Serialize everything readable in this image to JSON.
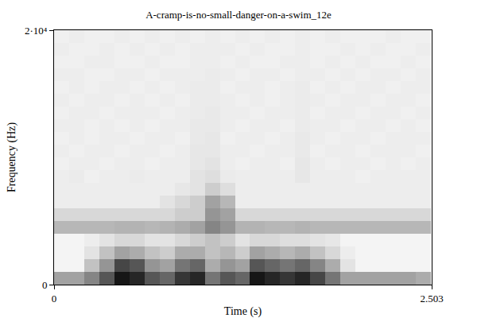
{
  "chart_data": {
    "type": "heatmap",
    "title": "A-cramp-is-no-small-danger-on-a-swim_12e",
    "x_label": "Time (s)",
    "y_label": "Frequency (Hz)",
    "x": [
      0.05,
      0.15,
      0.25,
      0.35,
      0.45,
      0.55,
      0.65,
      0.75,
      0.85,
      0.95,
      1.05,
      1.15,
      1.25,
      1.35,
      1.45,
      1.55,
      1.65,
      1.75,
      1.85,
      1.95,
      2.05,
      2.15,
      2.25,
      2.35,
      2.45
    ],
    "y": [
      500,
      1500,
      2500,
      3500,
      4500,
      5500,
      6500,
      7500,
      8500,
      9500,
      10500,
      11500,
      12500,
      13500,
      14500,
      15500,
      16500,
      17500,
      18500,
      19500
    ],
    "z": [
      [
        0.5,
        0.5,
        0.6,
        0.75,
        0.95,
        0.9,
        0.75,
        0.7,
        0.85,
        0.9,
        0.65,
        0.75,
        0.7,
        0.95,
        0.9,
        0.85,
        0.9,
        0.8,
        0.65,
        0.5,
        0.5,
        0.5,
        0.5,
        0.5,
        0.45
      ],
      [
        0.12,
        0.12,
        0.35,
        0.55,
        0.8,
        0.75,
        0.55,
        0.5,
        0.65,
        0.7,
        0.45,
        0.55,
        0.5,
        0.75,
        0.7,
        0.65,
        0.7,
        0.6,
        0.45,
        0.2,
        0.12,
        0.12,
        0.12,
        0.12,
        0.12
      ],
      [
        0.12,
        0.12,
        0.2,
        0.35,
        0.5,
        0.45,
        0.35,
        0.3,
        0.45,
        0.45,
        0.35,
        0.4,
        0.3,
        0.5,
        0.45,
        0.4,
        0.45,
        0.35,
        0.25,
        0.15,
        0.12,
        0.12,
        0.12,
        0.12,
        0.12
      ],
      [
        0.12,
        0.12,
        0.15,
        0.2,
        0.25,
        0.25,
        0.2,
        0.2,
        0.25,
        0.3,
        0.35,
        0.3,
        0.2,
        0.25,
        0.25,
        0.22,
        0.22,
        0.2,
        0.18,
        0.12,
        0.12,
        0.12,
        0.12,
        0.12,
        0.12
      ],
      [
        0.4,
        0.4,
        0.4,
        0.4,
        0.42,
        0.42,
        0.4,
        0.42,
        0.45,
        0.5,
        0.6,
        0.55,
        0.42,
        0.42,
        0.4,
        0.4,
        0.42,
        0.4,
        0.4,
        0.4,
        0.4,
        0.4,
        0.4,
        0.4,
        0.4
      ],
      [
        0.25,
        0.25,
        0.25,
        0.25,
        0.25,
        0.25,
        0.25,
        0.25,
        0.3,
        0.3,
        0.55,
        0.5,
        0.25,
        0.25,
        0.25,
        0.25,
        0.25,
        0.25,
        0.25,
        0.25,
        0.25,
        0.25,
        0.25,
        0.25,
        0.25
      ],
      [
        0.15,
        0.15,
        0.15,
        0.15,
        0.15,
        0.15,
        0.15,
        0.2,
        0.25,
        0.3,
        0.5,
        0.4,
        0.15,
        0.15,
        0.15,
        0.15,
        0.15,
        0.15,
        0.15,
        0.15,
        0.15,
        0.15,
        0.15,
        0.15,
        0.15
      ],
      [
        0.15,
        0.15,
        0.15,
        0.15,
        0.15,
        0.15,
        0.15,
        0.15,
        0.18,
        0.2,
        0.3,
        0.22,
        0.15,
        0.15,
        0.15,
        0.15,
        0.15,
        0.15,
        0.15,
        0.15,
        0.15,
        0.15,
        0.15,
        0.15,
        0.15
      ],
      [
        0.15,
        0.16,
        0.14,
        0.15,
        0.15,
        0.16,
        0.15,
        0.15,
        0.15,
        0.2,
        0.22,
        0.16,
        0.15,
        0.15,
        0.15,
        0.15,
        0.18,
        0.15,
        0.15,
        0.15,
        0.14,
        0.15,
        0.15,
        0.15,
        0.15
      ],
      [
        0.14,
        0.15,
        0.15,
        0.14,
        0.15,
        0.15,
        0.14,
        0.15,
        0.15,
        0.18,
        0.2,
        0.15,
        0.14,
        0.15,
        0.15,
        0.14,
        0.18,
        0.15,
        0.14,
        0.15,
        0.15,
        0.14,
        0.15,
        0.14,
        0.15
      ],
      [
        0.15,
        0.14,
        0.15,
        0.15,
        0.14,
        0.15,
        0.15,
        0.14,
        0.15,
        0.18,
        0.18,
        0.15,
        0.15,
        0.14,
        0.15,
        0.15,
        0.17,
        0.14,
        0.15,
        0.15,
        0.14,
        0.15,
        0.15,
        0.15,
        0.14
      ],
      [
        0.14,
        0.15,
        0.14,
        0.15,
        0.15,
        0.14,
        0.15,
        0.15,
        0.14,
        0.17,
        0.18,
        0.14,
        0.15,
        0.15,
        0.14,
        0.15,
        0.17,
        0.15,
        0.14,
        0.15,
        0.15,
        0.14,
        0.15,
        0.15,
        0.15
      ],
      [
        0.15,
        0.15,
        0.14,
        0.15,
        0.14,
        0.15,
        0.14,
        0.15,
        0.15,
        0.17,
        0.17,
        0.15,
        0.14,
        0.15,
        0.15,
        0.14,
        0.16,
        0.15,
        0.15,
        0.14,
        0.15,
        0.15,
        0.14,
        0.15,
        0.14
      ],
      [
        0.14,
        0.15,
        0.15,
        0.14,
        0.15,
        0.15,
        0.15,
        0.14,
        0.15,
        0.16,
        0.17,
        0.15,
        0.15,
        0.14,
        0.15,
        0.15,
        0.16,
        0.14,
        0.15,
        0.15,
        0.14,
        0.15,
        0.15,
        0.14,
        0.15
      ],
      [
        0.15,
        0.14,
        0.15,
        0.15,
        0.14,
        0.15,
        0.14,
        0.15,
        0.14,
        0.16,
        0.16,
        0.15,
        0.14,
        0.15,
        0.14,
        0.15,
        0.16,
        0.15,
        0.14,
        0.15,
        0.15,
        0.14,
        0.15,
        0.15,
        0.14
      ],
      [
        0.14,
        0.15,
        0.14,
        0.15,
        0.15,
        0.14,
        0.15,
        0.14,
        0.15,
        0.16,
        0.16,
        0.14,
        0.15,
        0.15,
        0.14,
        0.15,
        0.16,
        0.14,
        0.15,
        0.14,
        0.15,
        0.15,
        0.14,
        0.15,
        0.15
      ],
      [
        0.15,
        0.15,
        0.14,
        0.14,
        0.15,
        0.15,
        0.14,
        0.15,
        0.15,
        0.15,
        0.16,
        0.15,
        0.14,
        0.15,
        0.15,
        0.14,
        0.15,
        0.15,
        0.14,
        0.15,
        0.14,
        0.15,
        0.15,
        0.14,
        0.15
      ],
      [
        0.14,
        0.14,
        0.15,
        0.15,
        0.14,
        0.14,
        0.15,
        0.14,
        0.14,
        0.15,
        0.15,
        0.14,
        0.15,
        0.14,
        0.14,
        0.15,
        0.15,
        0.14,
        0.15,
        0.14,
        0.15,
        0.14,
        0.14,
        0.15,
        0.14
      ],
      [
        0.15,
        0.14,
        0.14,
        0.15,
        0.14,
        0.15,
        0.14,
        0.15,
        0.14,
        0.15,
        0.15,
        0.15,
        0.14,
        0.15,
        0.14,
        0.14,
        0.15,
        0.14,
        0.14,
        0.15,
        0.14,
        0.15,
        0.14,
        0.14,
        0.15
      ],
      [
        0.14,
        0.15,
        0.14,
        0.14,
        0.15,
        0.14,
        0.15,
        0.14,
        0.15,
        0.14,
        0.15,
        0.14,
        0.15,
        0.14,
        0.15,
        0.14,
        0.15,
        0.14,
        0.15,
        0.14,
        0.14,
        0.14,
        0.15,
        0.14,
        0.14
      ]
    ],
    "xlim": [
      0,
      2.503
    ],
    "ylim": [
      0,
      20000
    ],
    "xticks": [
      0,
      2.503
    ],
    "yticks": [
      0,
      {
        "value": 20000,
        "label": "2·10⁴"
      }
    ]
  }
}
